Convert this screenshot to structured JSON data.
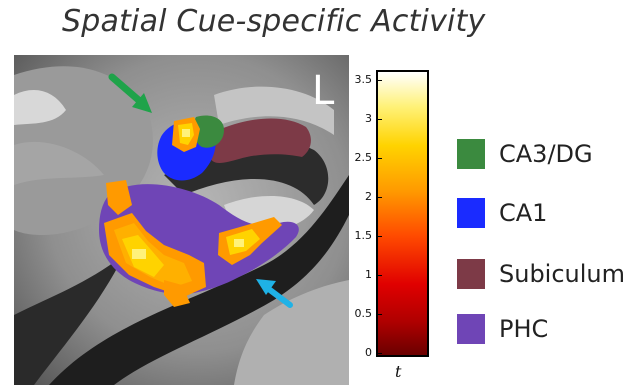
{
  "title": "Spatial Cue-specific Activity",
  "image": {
    "side_label": "L"
  },
  "colorbar": {
    "ticks": [
      "3.5",
      "3",
      "2.5",
      "2",
      "1.5",
      "1",
      "0.5",
      "0"
    ],
    "label": "t",
    "min": 0,
    "max": 3.6
  },
  "legend": [
    {
      "label": "CA3/DG",
      "color": "#3b8a3f"
    },
    {
      "label": "CA1",
      "color": "#1a2bff"
    },
    {
      "label": "Subiculum",
      "color": "#7d3a47"
    },
    {
      "label": "PHC",
      "color": "#6f45b6"
    }
  ],
  "arrows": [
    {
      "name": "green-arrow",
      "color": "#1fa34a"
    },
    {
      "name": "blue-arrow",
      "color": "#1fb2e6"
    }
  ]
}
